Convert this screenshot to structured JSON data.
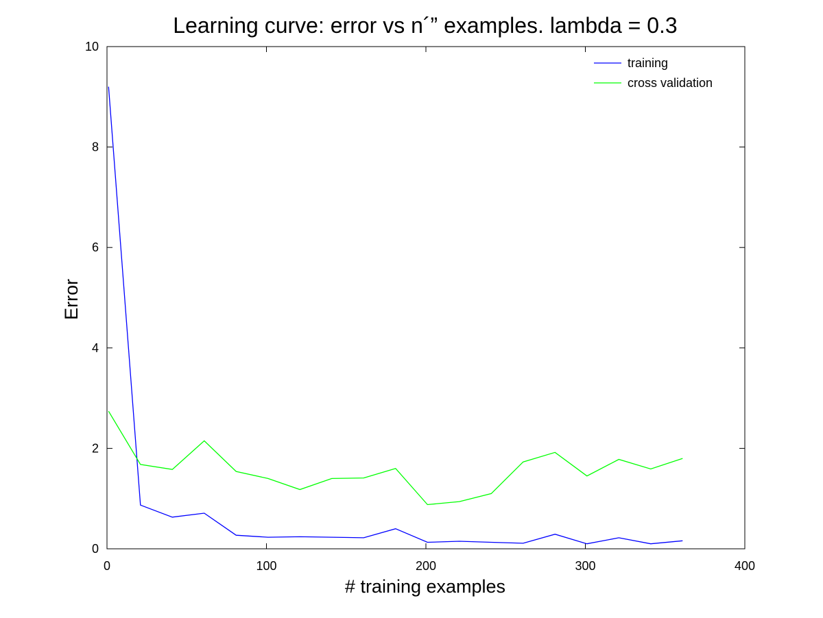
{
  "chart_data": {
    "type": "line",
    "title": "Learning curve: error vs n´” examples. lambda = 0.3",
    "xlabel": "# training examples",
    "ylabel": "Error",
    "xlim": [
      0,
      400
    ],
    "ylim": [
      0,
      10
    ],
    "xticks": [
      0,
      100,
      200,
      300,
      400
    ],
    "yticks": [
      0,
      2,
      4,
      6,
      8,
      10
    ],
    "grid": false,
    "legend_position": "top-right",
    "x": [
      1,
      21,
      41,
      61,
      81,
      101,
      121,
      141,
      161,
      181,
      201,
      221,
      241,
      261,
      281,
      301,
      321,
      341,
      361
    ],
    "series": [
      {
        "name": "training",
        "color": "#0000ff",
        "values": [
          9.2,
          0.87,
          0.63,
          0.71,
          0.27,
          0.23,
          0.24,
          0.23,
          0.22,
          0.4,
          0.13,
          0.15,
          0.13,
          0.11,
          0.29,
          0.1,
          0.22,
          0.1,
          0.16
        ]
      },
      {
        "name": "cross validation",
        "color": "#00ff00",
        "values": [
          2.74,
          1.68,
          1.58,
          2.15,
          1.54,
          1.4,
          1.18,
          1.4,
          1.41,
          1.6,
          0.88,
          0.94,
          1.1,
          1.73,
          1.92,
          1.45,
          1.78,
          1.59,
          1.8
        ]
      }
    ]
  }
}
